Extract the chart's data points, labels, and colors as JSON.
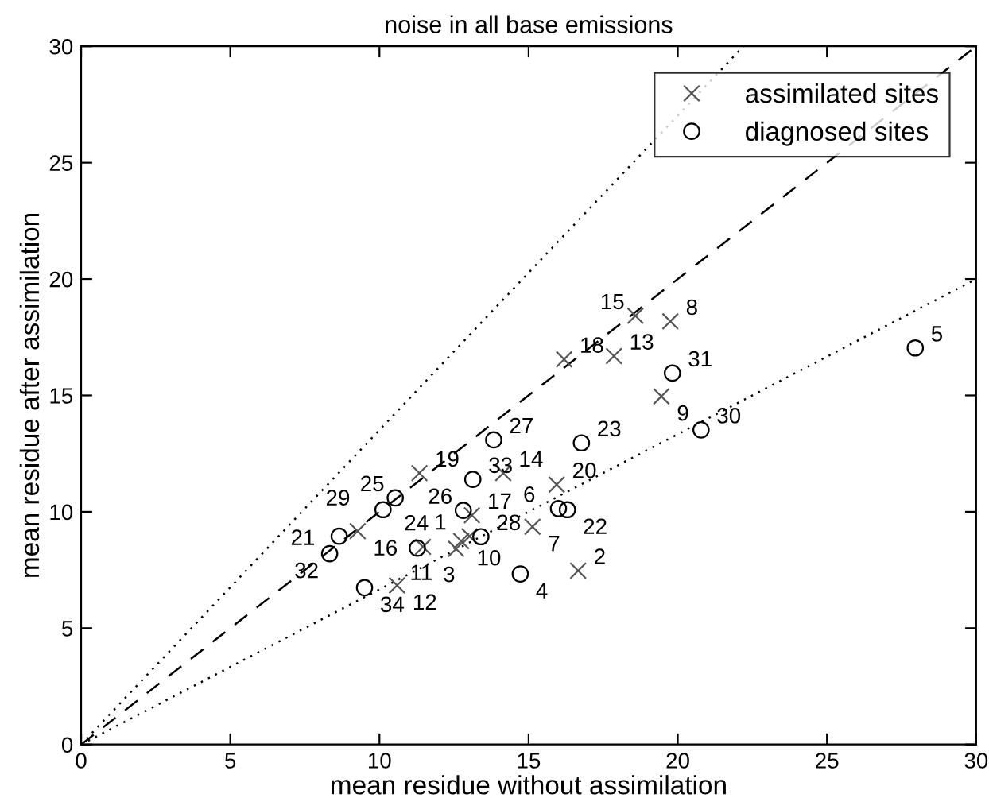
{
  "chart_data": {
    "type": "scatter",
    "title": "noise in all base emissions",
    "xlabel": "mean residue without assimilation",
    "ylabel": "mean residue after assimilation",
    "xlim": [
      0,
      30
    ],
    "ylim": [
      0,
      30
    ],
    "xticks": [
      0,
      5,
      10,
      15,
      20,
      25,
      30
    ],
    "yticks": [
      0,
      5,
      10,
      15,
      20,
      25,
      30
    ],
    "grid": false,
    "legend": "top right",
    "series": [
      {
        "name": "assimilated sites",
        "marker": "cross",
        "color": "#555555",
        "x": [
          18.58,
          19.75,
          16.19,
          17.86,
          19.45,
          11.34,
          14.15,
          15.94,
          13.1,
          15.13,
          13.02,
          12.74,
          11.46,
          12.57,
          9.27,
          10.59,
          16.66
        ],
        "values": [
          18.42,
          18.18,
          16.55,
          16.69,
          14.96,
          11.66,
          11.66,
          11.17,
          9.85,
          9.36,
          8.95,
          8.74,
          8.49,
          8.41,
          9.17,
          6.84,
          7.47
        ]
      },
      {
        "name": "diagnosed sites",
        "marker": "circle",
        "color": "#000000",
        "x": [
          27.96,
          19.82,
          20.78,
          16.77,
          13.83,
          13.13,
          10.53,
          10.12,
          12.81,
          16.0,
          16.3,
          13.4,
          11.27,
          8.65,
          8.33,
          9.5,
          14.72
        ],
        "values": [
          17.04,
          15.96,
          13.52,
          12.96,
          13.09,
          11.39,
          10.6,
          10.09,
          10.06,
          10.14,
          10.09,
          8.93,
          8.44,
          8.95,
          8.2,
          6.74,
          7.33
        ]
      },
      {
        "type": "line",
        "line_style": "dashed",
        "color": "#000000",
        "x": [
          0,
          30
        ],
        "values": [
          0,
          30
        ]
      },
      {
        "type": "line",
        "line_style": "dotted",
        "color": "#000000",
        "x": [
          0,
          22.2
        ],
        "values": [
          0,
          30
        ]
      },
      {
        "type": "line",
        "line_style": "dotted",
        "color": "#000000",
        "x": [
          0,
          30
        ],
        "values": [
          0,
          20
        ]
      }
    ],
    "annotations": [
      {
        "text": "15",
        "x": 18.58,
        "y": 18.42
      },
      {
        "text": "8",
        "x": 19.75,
        "y": 18.18
      },
      {
        "text": "18",
        "x": 16.19,
        "y": 16.55
      },
      {
        "text": "13",
        "x": 17.86,
        "y": 16.69
      },
      {
        "text": "9",
        "x": 19.45,
        "y": 14.96
      },
      {
        "text": "19",
        "x": 11.34,
        "y": 11.66
      },
      {
        "text": "14",
        "x": 14.15,
        "y": 11.66
      },
      {
        "text": "20",
        "x": 15.94,
        "y": 11.17
      },
      {
        "text": "17",
        "x": 13.1,
        "y": 9.85
      },
      {
        "text": "7",
        "x": 15.13,
        "y": 9.36
      },
      {
        "text": "1",
        "x": 13.02,
        "y": 8.95
      },
      {
        "text": "10",
        "x": 12.74,
        "y": 8.74
      },
      {
        "text": "11",
        "x": 11.46,
        "y": 8.49
      },
      {
        "text": "3",
        "x": 12.57,
        "y": 8.41
      },
      {
        "text": "16",
        "x": 9.27,
        "y": 9.17
      },
      {
        "text": "12",
        "x": 10.59,
        "y": 6.84
      },
      {
        "text": "2",
        "x": 16.66,
        "y": 7.47
      },
      {
        "text": "5",
        "x": 27.96,
        "y": 17.04
      },
      {
        "text": "31",
        "x": 19.82,
        "y": 15.96
      },
      {
        "text": "30",
        "x": 20.78,
        "y": 13.52
      },
      {
        "text": "23",
        "x": 16.77,
        "y": 12.96
      },
      {
        "text": "27",
        "x": 13.83,
        "y": 13.09
      },
      {
        "text": "33",
        "x": 13.13,
        "y": 11.39
      },
      {
        "text": "25",
        "x": 10.53,
        "y": 10.6
      },
      {
        "text": "29",
        "x": 10.12,
        "y": 10.09
      },
      {
        "text": "26",
        "x": 12.81,
        "y": 10.06
      },
      {
        "text": "6",
        "x": 16.0,
        "y": 10.14
      },
      {
        "text": "22",
        "x": 16.3,
        "y": 10.09
      },
      {
        "text": "28",
        "x": 13.4,
        "y": 8.93
      },
      {
        "text": "24",
        "x": 11.27,
        "y": 8.44
      },
      {
        "text": "21",
        "x": 8.65,
        "y": 8.95
      },
      {
        "text": "32",
        "x": 8.33,
        "y": 8.2
      },
      {
        "text": "34",
        "x": 9.5,
        "y": 6.74
      },
      {
        "text": "4",
        "x": 14.72,
        "y": 7.33
      }
    ]
  }
}
